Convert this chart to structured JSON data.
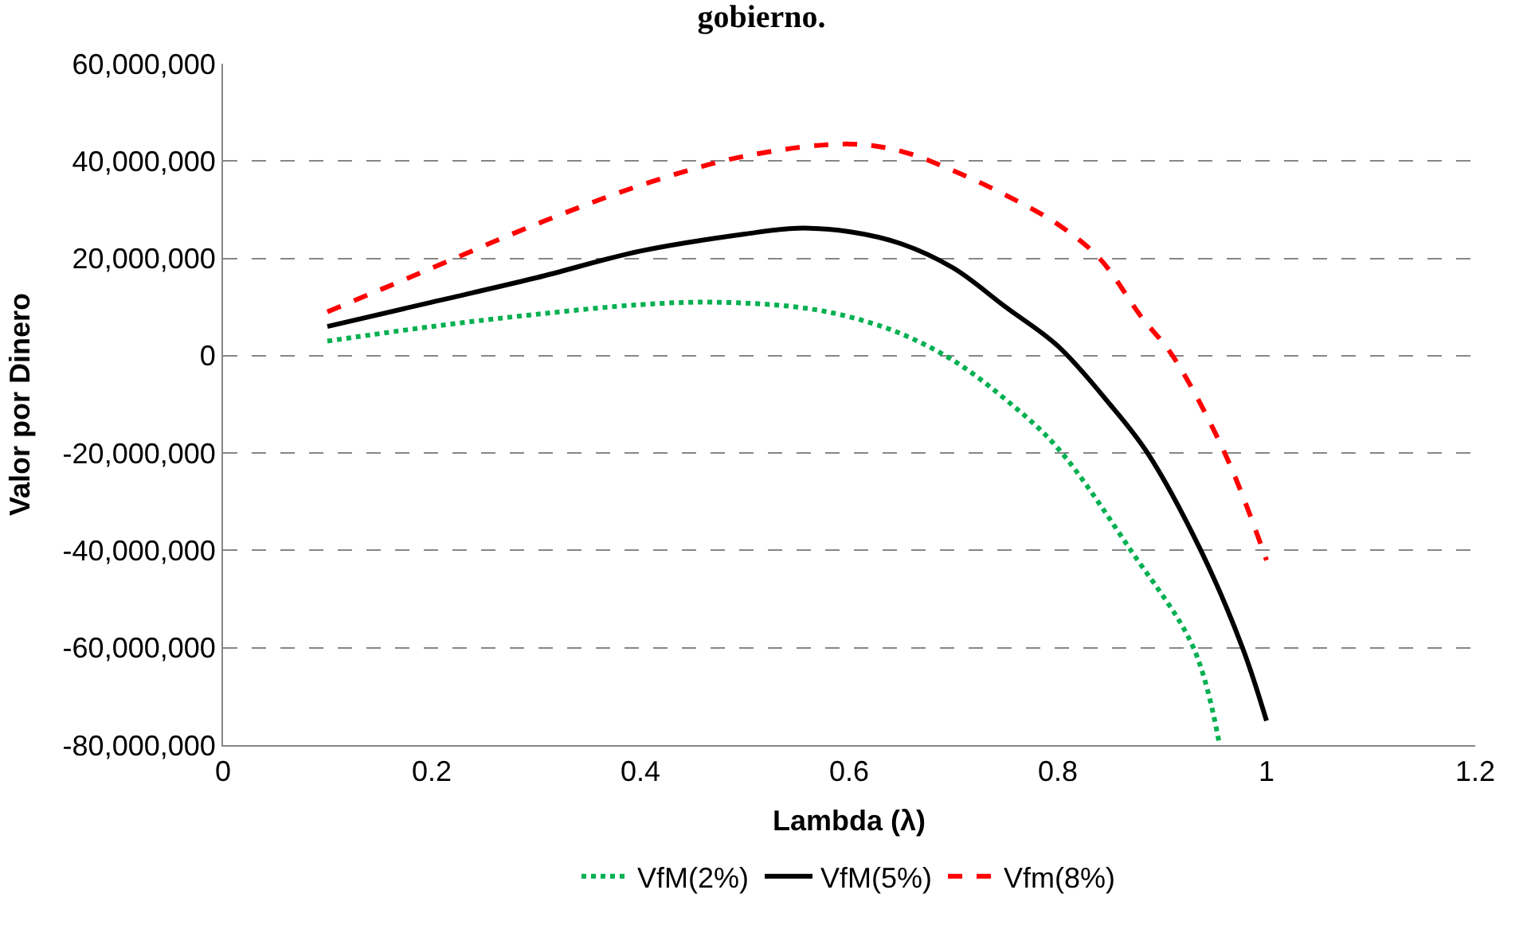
{
  "chart_data": {
    "type": "line",
    "title": "gobierno.",
    "xlabel": "Lambda (λ)",
    "ylabel": "Valor por Dinero",
    "xlim": [
      0,
      1.2
    ],
    "xticks": [
      0,
      0.2,
      0.4,
      0.6,
      0.8,
      1,
      1.2
    ],
    "ylim": [
      -80000000,
      60000000
    ],
    "yticks": [
      {
        "value": -80000000,
        "label": "-80,000,000"
      },
      {
        "value": -60000000,
        "label": "-60,000,000"
      },
      {
        "value": -40000000,
        "label": "-40,000,000"
      },
      {
        "value": -20000000,
        "label": "-20,000,000"
      },
      {
        "value": 0,
        "label": "0"
      },
      {
        "value": 20000000,
        "label": "20,000,000"
      },
      {
        "value": 40000000,
        "label": "40,000,000"
      },
      {
        "value": 60000000,
        "label": "60,000,000"
      }
    ],
    "grid": "y",
    "legend": "bottom",
    "marker": "none",
    "series": [
      {
        "name": "VfM(2%)",
        "color": "#00b050",
        "line_style": "dotted",
        "x": [
          0.1,
          0.2,
          0.3,
          0.4,
          0.47,
          0.55,
          0.6,
          0.65,
          0.7,
          0.75,
          0.8,
          0.87,
          0.93,
          0.955
        ],
        "values": [
          3000000,
          6000000,
          8500000,
          10500000,
          11000000,
          10000000,
          8000000,
          4500000,
          -1000000,
          -9000000,
          -19000000,
          -40000000,
          -60000000,
          -80000000
        ]
      },
      {
        "name": "VfM(5%)",
        "color": "#000000",
        "line_style": "solid",
        "x": [
          0.1,
          0.2,
          0.3,
          0.4,
          0.5,
          0.55,
          0.6,
          0.65,
          0.7,
          0.75,
          0.8,
          0.85,
          0.886,
          0.937,
          0.977,
          1.0
        ],
        "values": [
          6000000,
          11000000,
          16000000,
          21500000,
          25000000,
          26200000,
          25500000,
          23000000,
          18000000,
          10000000,
          2000000,
          -10000000,
          -20000000,
          -40000000,
          -60000000,
          -75000000
        ]
      },
      {
        "name": "Vfm(8%)",
        "color": "#ff0000",
        "line_style": "dashed",
        "x": [
          0.1,
          0.2,
          0.3,
          0.4,
          0.5,
          0.6,
          0.65,
          0.7,
          0.75,
          0.8,
          0.84,
          0.88,
          0.91,
          0.96,
          1.0
        ],
        "values": [
          9000000,
          18000000,
          27000000,
          35000000,
          41000000,
          43500000,
          42000000,
          38000000,
          33000000,
          27000000,
          20000000,
          8000000,
          0,
          -20000000,
          -42000000
        ]
      }
    ]
  }
}
